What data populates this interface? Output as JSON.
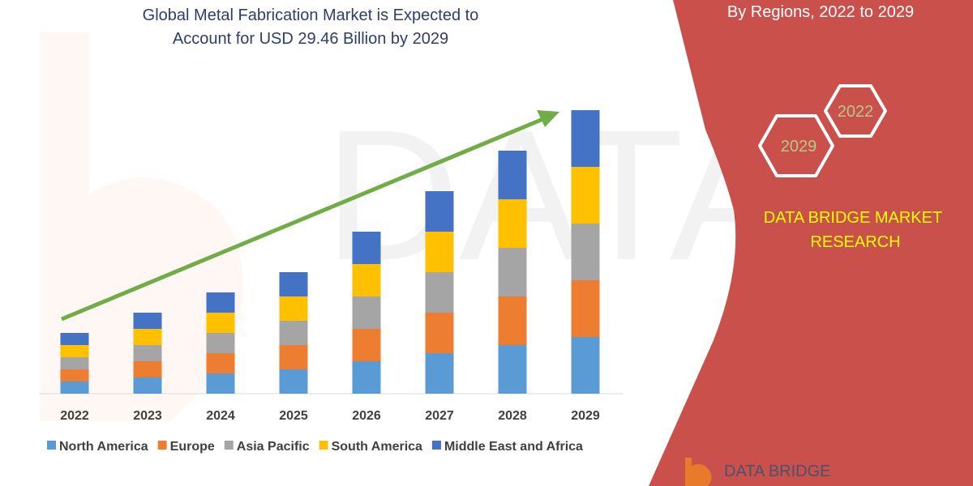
{
  "title_lines": [
    "Global Metal Fabrication Market is Expected to",
    "Account for USD 29.46 Billion by 2029"
  ],
  "side_panel": {
    "subtitle": "By Regions, 2022 to 2029",
    "hex_labels": [
      "2022",
      "2029"
    ],
    "brand_lines": [
      "DATA BRIDGE MARKET",
      "RESEARCH"
    ],
    "logo_text": "DATA BRIDGE",
    "panel_color": "#c9504b",
    "brand_color": "#ffff00"
  },
  "chart_data": {
    "type": "bar",
    "stacked": true,
    "title": "Global Metal Fabrication Market is Expected to Account for USD 29.46 Billion by 2029",
    "xlabel": "",
    "ylabel": "",
    "y_axis_shown": false,
    "grid": false,
    "legend_position": "bottom",
    "trend_arrow": true,
    "categories": [
      "2022",
      "2023",
      "2024",
      "2025",
      "2026",
      "2027",
      "2028",
      "2029"
    ],
    "ylim": [
      0,
      350
    ],
    "series": [
      {
        "name": "North America",
        "color": "#5b9bd5",
        "values": [
          15,
          20,
          25,
          30,
          40,
          50,
          60,
          70
        ]
      },
      {
        "name": "Europe",
        "color": "#ed7d31",
        "values": [
          15,
          20,
          25,
          30,
          40,
          50,
          60,
          70
        ]
      },
      {
        "name": "Asia Pacific",
        "color": "#a5a5a5",
        "values": [
          15,
          20,
          25,
          30,
          40,
          50,
          60,
          70
        ]
      },
      {
        "name": "South America",
        "color": "#ffc000",
        "values": [
          15,
          20,
          25,
          30,
          40,
          50,
          60,
          70
        ]
      },
      {
        "name": "Middle East and Africa",
        "color": "#4472c4",
        "values": [
          15,
          20,
          25,
          30,
          40,
          50,
          60,
          70
        ]
      }
    ],
    "arrow_color": "#70ad47"
  }
}
